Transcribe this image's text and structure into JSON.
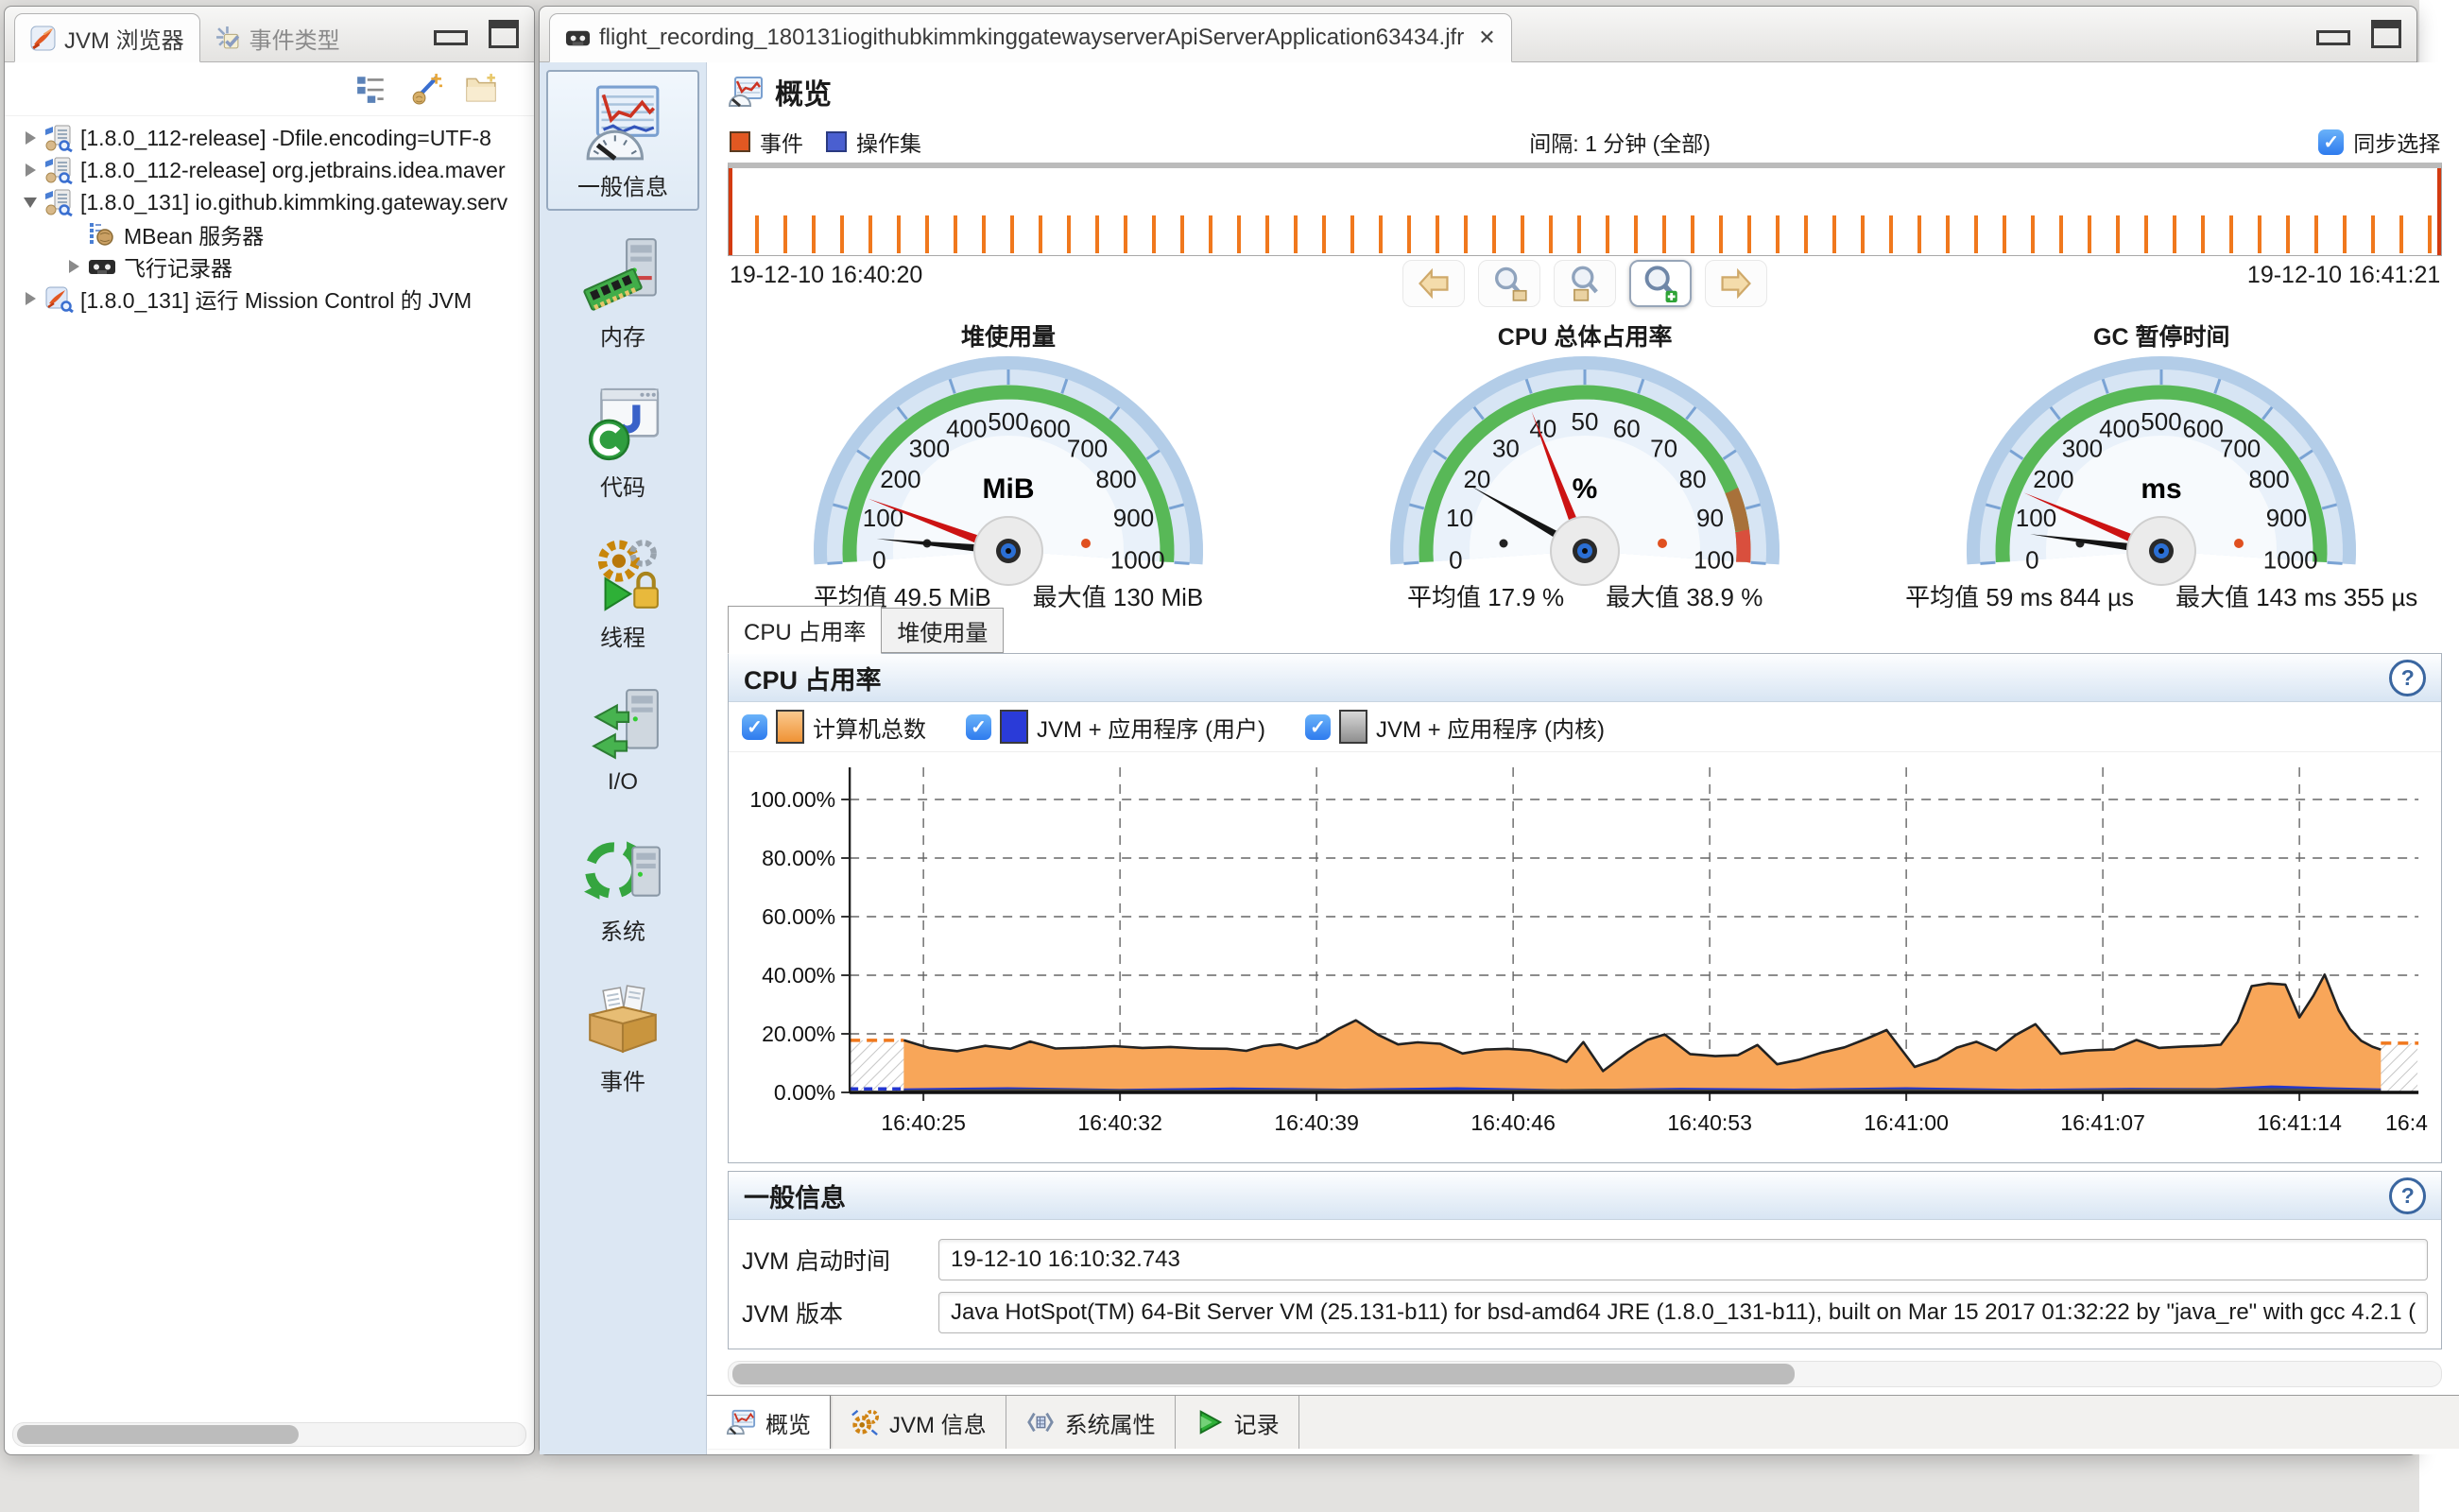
{
  "jvm_browser_panel": {
    "tabs": [
      {
        "label": "JVM 浏览器",
        "active": true
      },
      {
        "label": "事件类型",
        "active": false
      }
    ],
    "toolbar_icons": [
      "tree-layout-icon",
      "new-connection-icon",
      "new-folder-icon"
    ],
    "tree": [
      {
        "label": "[1.8.0_112-release] -Dfile.encoding=UTF-8",
        "level": 0,
        "expander": "collapsed",
        "icon": "jvm"
      },
      {
        "label": "[1.8.0_112-release] org.jetbrains.idea.maver",
        "level": 0,
        "expander": "collapsed",
        "icon": "jvm"
      },
      {
        "label": "[1.8.0_131] io.github.kimmking.gateway.serv",
        "level": 0,
        "expander": "expanded",
        "icon": "jvm"
      },
      {
        "label": "MBean 服务器",
        "level": 1,
        "expander": "none",
        "icon": "mbean"
      },
      {
        "label": "飞行记录器",
        "level": 1,
        "expander": "collapsed",
        "icon": "recorder"
      },
      {
        "label": "[1.8.0_131] 运行 Mission Control 的 JVM",
        "level": 0,
        "expander": "collapsed",
        "icon": "jvmmc"
      }
    ]
  },
  "editor": {
    "tab_title": "flight_recording_180131iogithubkimmkinggatewayserverApiServerApplication63434.jfr",
    "page_title": "概览",
    "events_label": "事件",
    "operations_label": "操作集",
    "interval_label": "间隔: 1 分钟 (全部)",
    "sync_label": "同步选择",
    "sync_checked": true,
    "start_time": "19-12-10 16:40:20",
    "end_time": "19-12-10 16:41:21"
  },
  "sidebar": {
    "items": [
      {
        "label": "一般信息",
        "icon": "general",
        "selected": true
      },
      {
        "label": "内存",
        "icon": "memory",
        "selected": false
      },
      {
        "label": "代码",
        "icon": "code",
        "selected": false
      },
      {
        "label": "线程",
        "icon": "threads",
        "selected": false
      },
      {
        "label": "I/O",
        "icon": "io",
        "selected": false
      },
      {
        "label": "系统",
        "icon": "system",
        "selected": false
      },
      {
        "label": "事件",
        "icon": "events",
        "selected": false
      }
    ]
  },
  "gauges": [
    {
      "title": "堆使用量",
      "unit": "MiB",
      "min": 0,
      "max": 1000,
      "tick_labels": [
        0,
        100,
        200,
        300,
        400,
        500,
        600,
        700,
        800,
        900,
        1000
      ],
      "avg_value": 49.5,
      "max_value": 130,
      "danger_zone": false,
      "caption_avg": "平均值 49.5 MiB",
      "caption_max": "最大值 130 MiB"
    },
    {
      "title": "CPU 总体占用率",
      "unit": "%",
      "min": 0,
      "max": 100,
      "tick_labels": [
        0,
        10,
        20,
        30,
        40,
        50,
        60,
        70,
        80,
        90,
        100
      ],
      "avg_value": 17.9,
      "max_value": 38.9,
      "danger_zone": true,
      "caption_avg": "平均值 17.9 %",
      "caption_max": "最大值 38.9 %"
    },
    {
      "title": "GC 暂停时间",
      "unit": "ms",
      "min": 0,
      "max": 1000,
      "tick_labels": [
        0,
        100,
        200,
        300,
        400,
        500,
        600,
        700,
        800,
        900,
        1000
      ],
      "avg_value": 59.844,
      "max_value": 143.355,
      "danger_zone": false,
      "caption_avg": "平均值 59 ms 844 µs",
      "caption_max": "最大值 143 ms 355 µs"
    }
  ],
  "chart_tabs": [
    {
      "label": "CPU 占用率",
      "active": true
    },
    {
      "label": "堆使用量",
      "active": false
    }
  ],
  "cpu_section": {
    "title": "CPU 占用率",
    "legend": [
      {
        "label": "计算机总数",
        "color": "#f39a3e",
        "checked": true
      },
      {
        "label": "JVM + 应用程序 (用户)",
        "color": "#2a3bd8",
        "checked": true
      },
      {
        "label": "JVM + 应用程序 (内核)",
        "color": "#9a9a9a",
        "checked": true
      }
    ]
  },
  "chart_data": {
    "type": "area",
    "title": "CPU 占用率",
    "xlabel": "",
    "ylabel": "",
    "ylim": [
      0,
      100
    ],
    "grid": true,
    "legend_position": "top",
    "y_ticks": [
      "100.00%",
      "80.00%",
      "60.00%",
      "40.00%",
      "20.00%",
      "0.00%"
    ],
    "x_ticks": [
      "16:40:25",
      "16:40:32",
      "16:40:39",
      "16:40:46",
      "16:40:53",
      "16:41:00",
      "16:41:07",
      "16:41:14"
    ],
    "x_tick_cut": "16:4",
    "x_tick_seconds": [
      5,
      12,
      19,
      26,
      33,
      40,
      47,
      54
    ],
    "data_window_seconds": [
      4.3,
      56.9
    ],
    "edge_indicator_machine_pct": [
      17.8,
      16.8
    ],
    "edge_indicator_jvm_pct": 1.2,
    "series": [
      {
        "name": "计算机总数",
        "color": "#f8a659",
        "line_color": "#222222",
        "points": [
          [
            4.3,
            17.8
          ],
          [
            5.2,
            15.2
          ],
          [
            6.2,
            14.1
          ],
          [
            7.2,
            15.9
          ],
          [
            8.1,
            14.9
          ],
          [
            8.8,
            17.4
          ],
          [
            9.7,
            15.0
          ],
          [
            10.8,
            15.3
          ],
          [
            11.8,
            15.8
          ],
          [
            12.8,
            15.2
          ],
          [
            13.8,
            15.5
          ],
          [
            14.8,
            15.0
          ],
          [
            15.8,
            14.9
          ],
          [
            16.5,
            14.2
          ],
          [
            17.1,
            15.8
          ],
          [
            17.7,
            16.4
          ],
          [
            18.3,
            15.0
          ],
          [
            19.0,
            17.2
          ],
          [
            19.8,
            21.8
          ],
          [
            20.4,
            24.6
          ],
          [
            21.2,
            19.6
          ],
          [
            21.9,
            16.4
          ],
          [
            22.6,
            17.1
          ],
          [
            23.4,
            16.6
          ],
          [
            24.2,
            13.3
          ],
          [
            25.0,
            14.6
          ],
          [
            25.8,
            14.9
          ],
          [
            26.6,
            14.4
          ],
          [
            27.3,
            12.7
          ],
          [
            27.9,
            10.4
          ],
          [
            28.5,
            17.2
          ],
          [
            29.2,
            7.3
          ],
          [
            30.1,
            13.8
          ],
          [
            30.8,
            18.0
          ],
          [
            31.4,
            19.8
          ],
          [
            32.3,
            13.1
          ],
          [
            33.2,
            12.4
          ],
          [
            34.0,
            12.7
          ],
          [
            34.7,
            16.2
          ],
          [
            35.4,
            9.6
          ],
          [
            36.2,
            11.2
          ],
          [
            37.0,
            13.6
          ],
          [
            37.8,
            15.4
          ],
          [
            38.6,
            18.4
          ],
          [
            39.3,
            21.3
          ],
          [
            40.3,
            8.7
          ],
          [
            41.1,
            11.3
          ],
          [
            41.8,
            15.3
          ],
          [
            42.5,
            17.3
          ],
          [
            43.2,
            14.4
          ],
          [
            43.9,
            19.6
          ],
          [
            44.6,
            23.3
          ],
          [
            45.5,
            13.2
          ],
          [
            46.4,
            14.3
          ],
          [
            47.4,
            14.7
          ],
          [
            48.2,
            17.9
          ],
          [
            49.0,
            15.2
          ],
          [
            49.8,
            15.6
          ],
          [
            50.6,
            15.9
          ],
          [
            51.2,
            16.3
          ],
          [
            51.8,
            24.0
          ],
          [
            52.3,
            36.3
          ],
          [
            52.9,
            37.2
          ],
          [
            53.5,
            36.8
          ],
          [
            54.0,
            25.6
          ],
          [
            54.5,
            33.0
          ],
          [
            54.9,
            40.2
          ],
          [
            55.4,
            28.0
          ],
          [
            55.8,
            21.6
          ],
          [
            56.2,
            17.6
          ],
          [
            56.6,
            15.6
          ],
          [
            56.9,
            14.6
          ]
        ]
      },
      {
        "name": "JVM + 应用程序 (用户)",
        "color": "#2335cf",
        "points": [
          [
            4.3,
            0.9
          ],
          [
            8,
            1.3
          ],
          [
            12,
            0.7
          ],
          [
            16,
            1.2
          ],
          [
            20,
            0.8
          ],
          [
            24,
            1.3
          ],
          [
            28,
            0.6
          ],
          [
            32,
            1.1
          ],
          [
            36,
            0.8
          ],
          [
            40,
            1.3
          ],
          [
            44,
            0.7
          ],
          [
            48,
            1.1
          ],
          [
            51,
            1.0
          ],
          [
            53,
            1.9
          ],
          [
            55,
            1.3
          ],
          [
            56.9,
            0.9
          ]
        ]
      },
      {
        "name": "JVM + 应用程序 (内核)",
        "color": "#4a4a4a",
        "points": [
          [
            4.3,
            0.4
          ],
          [
            9,
            0.8
          ],
          [
            14,
            0.4
          ],
          [
            19,
            0.7
          ],
          [
            24,
            0.4
          ],
          [
            29,
            0.8
          ],
          [
            34,
            0.4
          ],
          [
            39,
            0.7
          ],
          [
            44,
            0.4
          ],
          [
            49,
            0.8
          ],
          [
            53,
            1.0
          ],
          [
            56.9,
            0.5
          ]
        ]
      }
    ]
  },
  "info_section": {
    "title": "一般信息",
    "fields": [
      {
        "label": "JVM 启动时间",
        "value": "19-12-10 16:10:32.743"
      },
      {
        "label": "JVM 版本",
        "value": "Java HotSpot(TM) 64-Bit Server VM (25.131-b11) for bsd-amd64 JRE (1.8.0_131-b11), built on Mar 15 2017 01:32:22 by \"java_re\" with gcc 4.2.1 ("
      }
    ]
  },
  "bottom_tabs": [
    {
      "label": "概览",
      "icon": "overview",
      "active": true
    },
    {
      "label": "JVM 信息",
      "icon": "jvminfo",
      "active": false
    },
    {
      "label": "系统属性",
      "icon": "sysprops",
      "active": false
    },
    {
      "label": "记录",
      "icon": "record",
      "active": false
    }
  ]
}
